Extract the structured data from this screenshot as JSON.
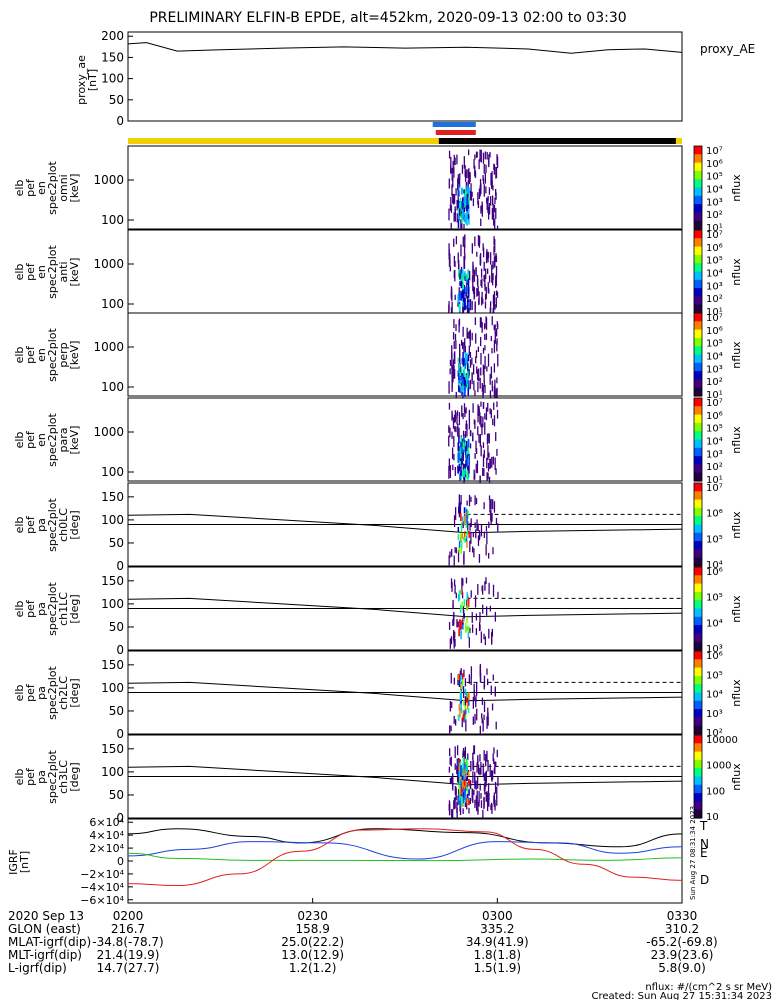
{
  "title": "PRELIMINARY ELFIN-B EPDE, alt=452km, 2020-09-13 02:00 to 03:30",
  "chart_data": [
    {
      "type": "line",
      "label": "proxy_ae",
      "ylabel_lines": [
        "proxy_ae",
        "[nT]"
      ],
      "ylim": [
        0,
        210
      ],
      "yticks": [
        "200",
        "150",
        "100",
        "50",
        "0"
      ],
      "ytick_values": [
        200,
        150,
        100,
        50,
        0
      ],
      "legend": "proxy_AE",
      "x_minutes": [
        0,
        3,
        8,
        15,
        25,
        35,
        45,
        55,
        65,
        72,
        78,
        84,
        90
      ],
      "values": [
        182,
        185,
        165,
        168,
        172,
        175,
        172,
        174,
        170,
        160,
        168,
        170,
        162
      ]
    },
    {
      "type": "bar",
      "label": "status bars",
      "yellow": "#f0d000",
      "black": "#000000",
      "blue": "#2070e0",
      "red": "#e02020"
    },
    {
      "type": "heatmap",
      "ylabel_lines": [
        "elb",
        "pef",
        "en",
        "spec2plot",
        "omni",
        "[keV]"
      ],
      "yticks": [
        "1000",
        "100"
      ],
      "scale": "log",
      "colorbar_ticks": [
        "10^7",
        "10^6",
        "10^5",
        "10^4",
        "10^3",
        "10^2",
        "10^1"
      ],
      "colorbar_label": "nflux"
    },
    {
      "type": "heatmap",
      "ylabel_lines": [
        "elb",
        "pef",
        "en",
        "spec2plot",
        "anti",
        "[keV]"
      ],
      "yticks": [
        "1000",
        "100"
      ],
      "scale": "log",
      "colorbar_ticks": [
        "10^7",
        "10^6",
        "10^5",
        "10^4",
        "10^3",
        "10^2",
        "10^1"
      ],
      "colorbar_label": "nflux"
    },
    {
      "type": "heatmap",
      "ylabel_lines": [
        "elb",
        "pef",
        "en",
        "spec2plot",
        "perp",
        "[keV]"
      ],
      "yticks": [
        "1000",
        "100"
      ],
      "scale": "log",
      "colorbar_ticks": [
        "10^7",
        "10^6",
        "10^5",
        "10^4",
        "10^3",
        "10^2",
        "10^1"
      ],
      "colorbar_label": "nflux"
    },
    {
      "type": "heatmap",
      "ylabel_lines": [
        "elb",
        "pef",
        "en",
        "spec2plot",
        "para",
        "[keV]"
      ],
      "yticks": [
        "1000",
        "100"
      ],
      "scale": "log",
      "colorbar_ticks": [
        "10^7",
        "10^6",
        "10^5",
        "10^4",
        "10^3",
        "10^2",
        "10^1"
      ],
      "colorbar_label": "nflux"
    },
    {
      "type": "heatmap",
      "ylabel_lines": [
        "elb",
        "pef",
        "pa",
        "spec2plot",
        "ch0LC",
        "[deg]"
      ],
      "yticks": [
        "150",
        "100",
        "50",
        "0"
      ],
      "ylim": [
        0,
        180
      ],
      "colorbar_ticks": [
        "10^7",
        "10^6",
        "10^5",
        "10^4"
      ],
      "colorbar_label": "nflux"
    },
    {
      "type": "heatmap",
      "ylabel_lines": [
        "elb",
        "pef",
        "pa",
        "spec2plot",
        "ch1LC",
        "[deg]"
      ],
      "yticks": [
        "150",
        "100",
        "50",
        "0"
      ],
      "ylim": [
        0,
        180
      ],
      "colorbar_ticks": [
        "10^6",
        "10^5",
        "10^4",
        "10^3"
      ],
      "colorbar_label": "nflux"
    },
    {
      "type": "heatmap",
      "ylabel_lines": [
        "elb",
        "pef",
        "pa",
        "spec2plot",
        "ch2LC",
        "[deg]"
      ],
      "yticks": [
        "150",
        "100",
        "50",
        "0"
      ],
      "ylim": [
        0,
        180
      ],
      "colorbar_ticks": [
        "10^6",
        "10^5",
        "10^4",
        "10^3",
        "10^2"
      ],
      "colorbar_label": "nflux"
    },
    {
      "type": "heatmap",
      "ylabel_lines": [
        "elb",
        "pef",
        "pa",
        "spec2plot",
        "ch3LC",
        "[deg]"
      ],
      "yticks": [
        "150",
        "100",
        "50",
        "0"
      ],
      "ylim": [
        0,
        180
      ],
      "colorbar_ticks": [
        "10000",
        "1000",
        "100",
        "10"
      ],
      "colorbar_label": "nflux"
    },
    {
      "type": "line",
      "ylabel_lines": [
        "IGRF",
        "[nT]"
      ],
      "ylim": [
        -65000,
        65000
      ],
      "yticks": [
        "6×10⁴",
        "4×10⁴",
        "2×10⁴",
        "0",
        "−2×10⁴",
        "−4×10⁴",
        "−6×10⁴"
      ],
      "ytick_values": [
        60000,
        40000,
        20000,
        0,
        -20000,
        -40000,
        -60000
      ],
      "series": [
        {
          "name": "T",
          "color": "#000000",
          "x_minutes": [
            0,
            8,
            20,
            28,
            40,
            55,
            68,
            80,
            90
          ],
          "values": [
            42000,
            50000,
            38000,
            28000,
            50000,
            44000,
            28000,
            22000,
            42000
          ]
        },
        {
          "name": "N",
          "color": "#2040e0",
          "x_minutes": [
            0,
            10,
            20,
            32,
            47,
            60,
            70,
            80,
            90
          ],
          "values": [
            8000,
            18000,
            30000,
            28000,
            3000,
            30000,
            28000,
            12000,
            22000
          ]
        },
        {
          "name": "E",
          "color": "#20c020",
          "x_minutes": [
            0,
            8,
            20,
            35,
            50,
            65,
            78,
            90
          ],
          "values": [
            12000,
            4000,
            1000,
            1000,
            500,
            3000,
            1000,
            5000
          ]
        },
        {
          "name": "D",
          "color": "#e02020",
          "x_minutes": [
            0,
            8,
            18,
            28,
            38,
            48,
            58,
            66,
            74,
            82,
            90
          ],
          "values": [
            -35000,
            -38000,
            -20000,
            15000,
            48000,
            50000,
            45000,
            18000,
            -5000,
            -25000,
            -30000
          ]
        }
      ]
    }
  ],
  "x_axis": {
    "row_labels": [
      "2020 Sep 13",
      "GLON (east)",
      "MLAT-igrf(dip)",
      "MLT-igrf(dip)",
      "L-igrf(dip)"
    ],
    "columns": [
      {
        "tick": "0200",
        "values": [
          "216.7",
          "-34.8(-78.7)",
          "21.4(19.9)",
          "14.7(27.7)"
        ]
      },
      {
        "tick": "0230",
        "values": [
          "158.9",
          "25.0(22.2)",
          "13.0(12.9)",
          "1.2(1.2)"
        ]
      },
      {
        "tick": "0300",
        "values": [
          "335.2",
          "34.9(41.9)",
          "1.8(1.8)",
          "1.5(1.9)"
        ]
      },
      {
        "tick": "0330",
        "values": [
          "310.2",
          "-65.2(-69.8)",
          "23.9(23.6)",
          "5.8(9.0)"
        ]
      }
    ]
  },
  "footer": {
    "units": "nflux: #/(cm^2 s sr MeV)",
    "created": "Created: Sun Aug 27 15:31:34 2023",
    "side_stamp": "Sun Aug 27 08:31:34 2023"
  }
}
